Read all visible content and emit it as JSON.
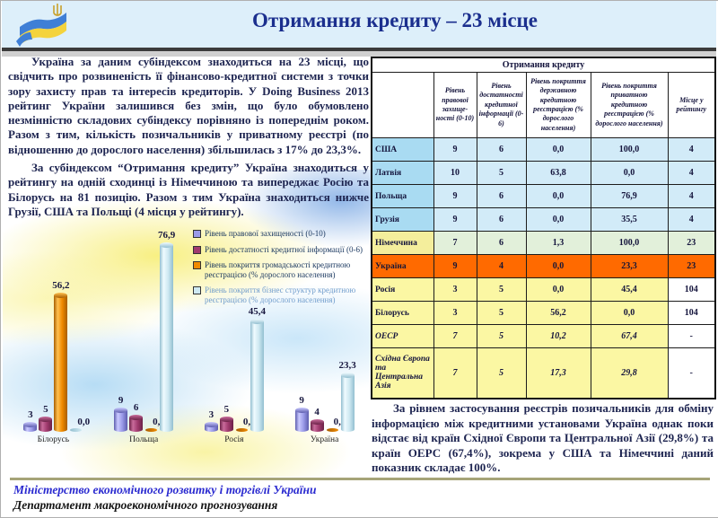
{
  "header": {
    "title": "Отримання кредиту – 23 місце"
  },
  "paragraphs": {
    "p1": "Україна за даним субіндексом знаходиться на 23 місці, що свідчить про розвиненість її фінансово-кредитної системи з точки зору захисту прав та інтересів кредиторів. У Doing Business 2013 рейтинг України залишився без змін, що було обумовлено незмінністю складових субіндексу порівняно із попереднім роком. Разом з тим, кількість позичальників у приватному реєстрі (по відношенню до дорослого населення) збільшилась з 17% до 23,3%.",
    "p2": "За субіндексом “Отримання кредиту” Україна знаходиться у рейтингу на одній сходинці із Німеччиною та випереджає Росію та Білорусь на 81 позицію. Разом з тим Україна знаходиться нижче Грузії, США та Польщі (4 місця у рейтингу).",
    "p3": "За рівнем застосування реєстрів позичальників для обміну інформацією між кредитними установами Україна однак поки відстає від країн Східної Європи та Центральної Азії (29,8%) та країн ОЕРС (67,4%), зокрема у США та Німеччині даний показник складає 100%."
  },
  "table": {
    "title": "Отримання кредиту",
    "columns": [
      "",
      "Рівень правової захище-ності (0-10)",
      "Рівень достатності кредитної інформації (0-6)",
      "Рівень покриття державною кредитною реєстрацією (% дорослого населення)",
      "Рівень покриття приватною кредитною реєстрацією (% дорослого населення)",
      "Місце у рейтингу"
    ],
    "rows": [
      {
        "country": "США",
        "legal": "9",
        "info": "6",
        "public": "0,0",
        "private": "100,0",
        "rank": "4",
        "style": "blue"
      },
      {
        "country": "Латвія",
        "legal": "10",
        "info": "5",
        "public": "63,8",
        "private": "0,0",
        "rank": "4",
        "style": "blue"
      },
      {
        "country": "Польща",
        "legal": "9",
        "info": "6",
        "public": "0,0",
        "private": "76,9",
        "rank": "4",
        "style": "blue"
      },
      {
        "country": "Грузія",
        "legal": "9",
        "info": "6",
        "public": "0,0",
        "private": "35,5",
        "rank": "4",
        "style": "blue"
      },
      {
        "country": "Німеччина",
        "legal": "7",
        "info": "6",
        "public": "1,3",
        "private": "100,0",
        "rank": "23",
        "style": "german"
      },
      {
        "country": "Україна",
        "legal": "9",
        "info": "4",
        "public": "0,0",
        "private": "23,3",
        "rank": "23",
        "style": "orange"
      },
      {
        "country": "Росія",
        "legal": "3",
        "info": "5",
        "public": "0,0",
        "private": "45,4",
        "rank": "104",
        "style": "yellow"
      },
      {
        "country": "Білорусь",
        "legal": "3",
        "info": "5",
        "public": "56,2",
        "private": "0,0",
        "rank": "104",
        "style": "yellow"
      },
      {
        "country": "ОЕСР",
        "legal": "7",
        "info": "5",
        "public": "10,2",
        "private": "67,4",
        "rank": "-",
        "style": "yellow-italic"
      },
      {
        "country": "Східна Європа та Центральна Азія",
        "legal": "7",
        "info": "5",
        "public": "17,3",
        "private": "29,8",
        "rank": "-",
        "style": "yellow-italic"
      }
    ]
  },
  "chart_data": {
    "type": "bar",
    "title": "",
    "categories": [
      "Білорусь",
      "Польща",
      "Росія",
      "Україна"
    ],
    "series": [
      {
        "name": "Рівень правової захищеності (0-10)",
        "color": "#9a9ae8",
        "light": "#c9c9ff",
        "dark": "#5d5dae",
        "values": [
          3,
          9,
          3,
          9
        ],
        "labels": [
          "3",
          "9",
          "3",
          "9"
        ]
      },
      {
        "name": "Рівень достатності кредитної інформації (0-6)",
        "color": "#a03a6e",
        "light": "#c96b9b",
        "dark": "#6b2247",
        "values": [
          5,
          6,
          5,
          4
        ],
        "labels": [
          "5",
          "6",
          "5",
          "4"
        ]
      },
      {
        "name": "Рівень покриття громадськості кредитною реєстрацією (% дорослого населення)",
        "color": "#f08a00",
        "light": "#ffc050",
        "dark": "#a85e00",
        "values": [
          56.2,
          0,
          0,
          0
        ],
        "labels": [
          "56,2",
          "0,0",
          "0,0",
          "0,0"
        ]
      },
      {
        "name": "Рівень покриття бізнес структур кредитною реєстрацією (% дорослого населення)",
        "color": "#cfe9f2",
        "light": "#effbff",
        "dark": "#93bfd0",
        "values": [
          0,
          76.9,
          45.4,
          23.3
        ],
        "labels": [
          "0,0",
          "76,9",
          "45,4",
          "23,3"
        ]
      }
    ],
    "value_labels_shown": true,
    "axes_shown": false,
    "grid": false,
    "legend_position": "right-overlay",
    "ylim": [
      0,
      80
    ]
  },
  "footer": {
    "line1": "Міністерство економічного розвитку і торгівлі України",
    "line2": "Департамент макроекономічного прогнозування"
  },
  "colors": {
    "title": "#1b2f8e",
    "header_band": "#ddeffa",
    "ukraine_row": "#ff6a00",
    "footer_blue": "#2b2bd0"
  }
}
